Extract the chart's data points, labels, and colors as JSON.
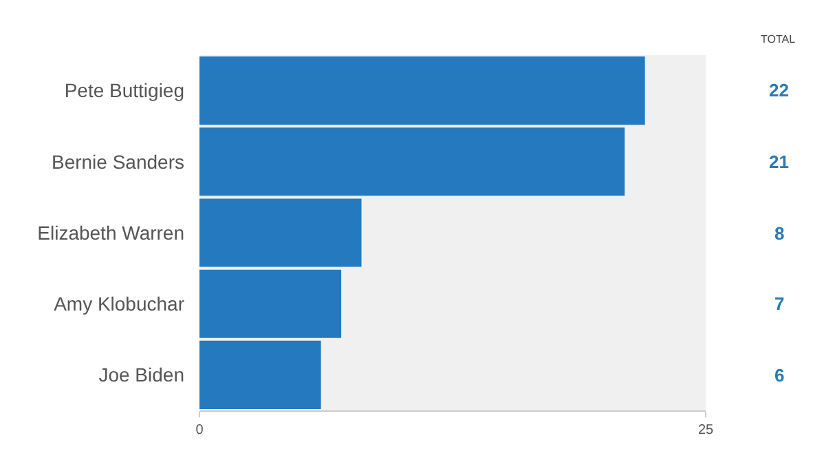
{
  "chart_data": {
    "type": "bar",
    "orientation": "horizontal",
    "categories": [
      "Pete Buttigieg",
      "Bernie Sanders",
      "Elizabeth Warren",
      "Amy Klobuchar",
      "Joe Biden"
    ],
    "values": [
      22,
      21,
      8,
      7,
      6
    ],
    "color": "#2479bf",
    "xlim": [
      0,
      25
    ],
    "xticks": [
      0,
      25
    ],
    "data_labels": true,
    "annotations": [
      "TOTAL"
    ]
  }
}
